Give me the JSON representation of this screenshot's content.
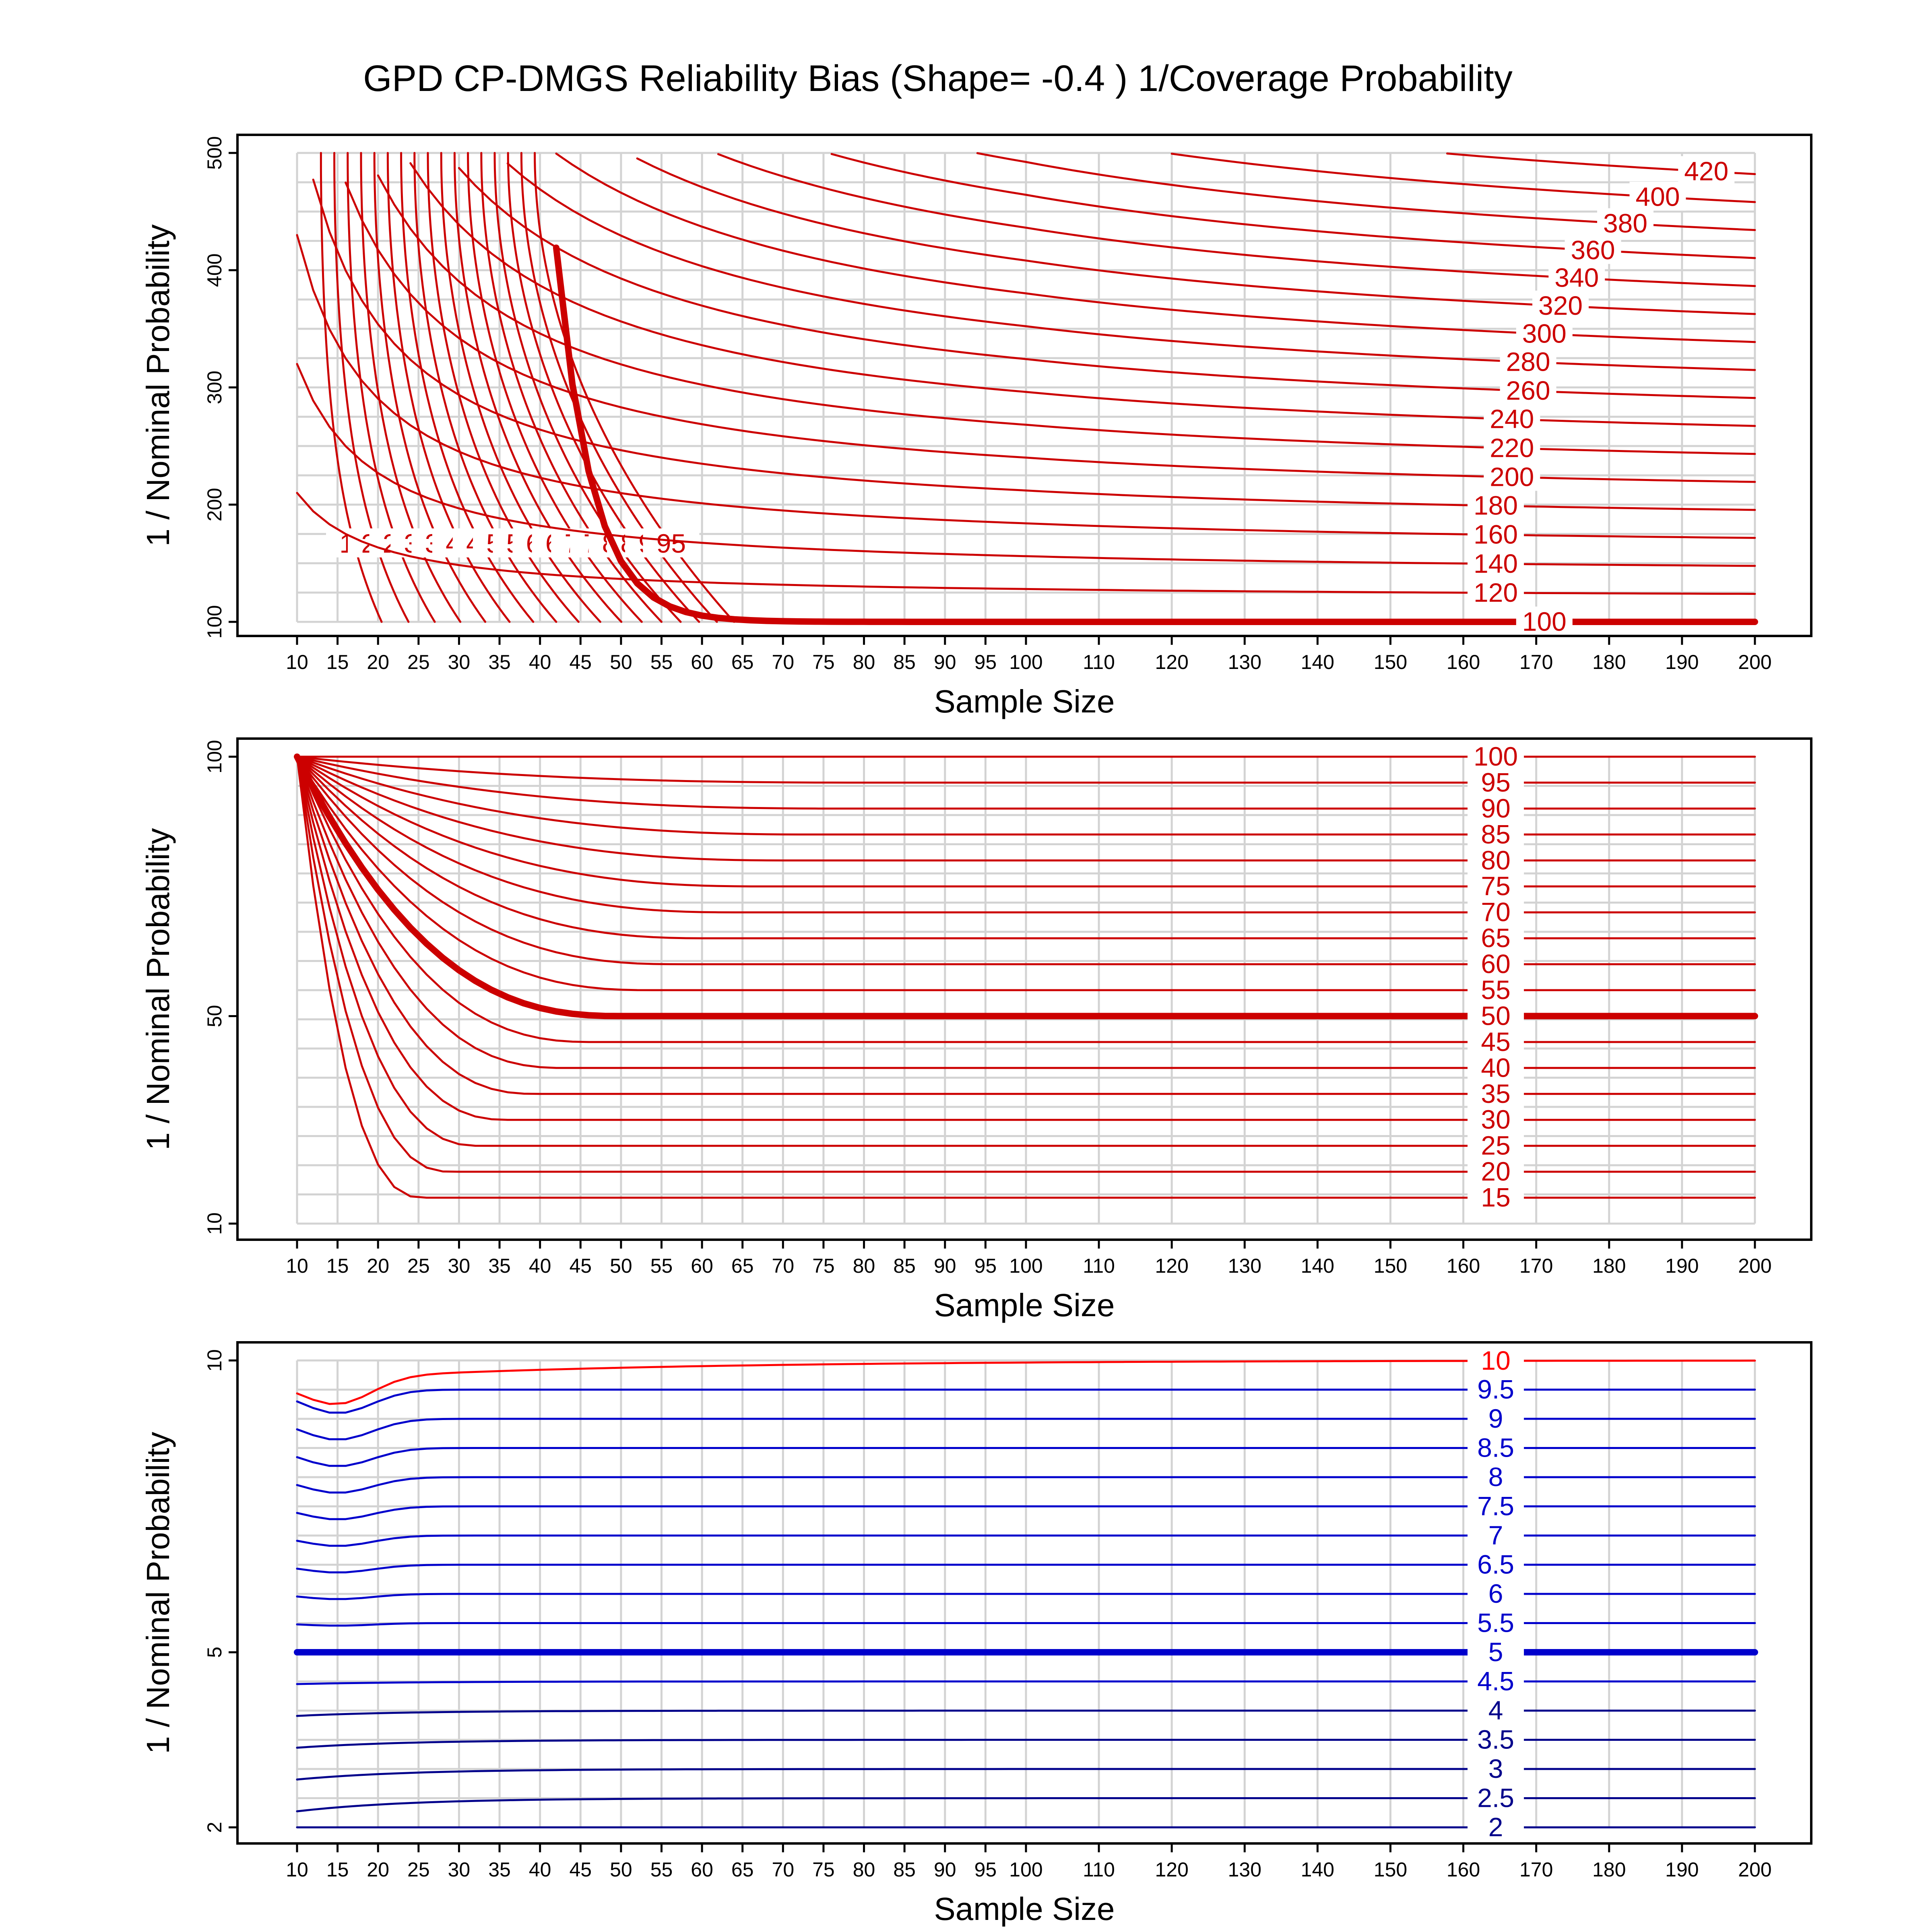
{
  "title": "GPD CP-DMGS Reliability Bias (Shape= -0.4 ) 1/Coverage Probability",
  "colors": {
    "red": "#cc0000",
    "bright_red": "#ff0000",
    "blue": "#0000cc",
    "navy": "#00008b",
    "grid": "#d3d3d3"
  },
  "chart_data": [
    {
      "type": "contour",
      "xlabel": "Sample Size",
      "ylabel": "1 / Nominal Probability",
      "x_ticks": [
        10,
        15,
        20,
        25,
        30,
        35,
        40,
        45,
        50,
        55,
        60,
        65,
        70,
        75,
        80,
        85,
        90,
        95,
        100,
        110,
        120,
        130,
        140,
        150,
        160,
        170,
        180,
        190,
        200
      ],
      "y_ticks": [
        100,
        200,
        300,
        400,
        500
      ],
      "ylim": [
        100,
        500
      ],
      "grid": true,
      "contour_levels_labeled": [
        "15",
        "20",
        "25",
        "30",
        "35",
        "40",
        "45",
        "50",
        "55",
        "60",
        "65",
        "70",
        "75",
        "80",
        "85",
        "90",
        "95",
        "100",
        "120",
        "140",
        "160",
        "180",
        "200",
        "220",
        "240",
        "260",
        "280",
        "300",
        "320",
        "340",
        "360",
        "380",
        "400",
        "420"
      ],
      "highlighted_contour": 100,
      "line_color": "red"
    },
    {
      "type": "contour",
      "xlabel": "Sample Size",
      "ylabel": "1 / Nominal Probability",
      "x_ticks": [
        10,
        15,
        20,
        25,
        30,
        35,
        40,
        45,
        50,
        55,
        60,
        65,
        70,
        75,
        80,
        85,
        90,
        95,
        100,
        110,
        120,
        130,
        140,
        150,
        160,
        170,
        180,
        190,
        200
      ],
      "y_ticks": [
        10,
        50,
        100
      ],
      "ylim": [
        10,
        100
      ],
      "grid": true,
      "contour_levels_labeled": [
        "15",
        "20",
        "25",
        "30",
        "35",
        "40",
        "45",
        "50",
        "55",
        "60",
        "65",
        "70",
        "75",
        "80",
        "85",
        "90",
        "95",
        "100"
      ],
      "highlighted_contour": 50,
      "line_color": "red"
    },
    {
      "type": "contour",
      "xlabel": "Sample Size",
      "ylabel": "1 / Nominal Probability",
      "x_ticks": [
        10,
        15,
        20,
        25,
        30,
        35,
        40,
        45,
        50,
        55,
        60,
        65,
        70,
        75,
        80,
        85,
        90,
        95,
        100,
        110,
        120,
        130,
        140,
        150,
        160,
        170,
        180,
        190,
        200
      ],
      "y_ticks": [
        2,
        5,
        10
      ],
      "ylim": [
        2,
        10
      ],
      "grid": true,
      "contour_levels_labeled": [
        "2",
        "2.5",
        "3",
        "3.5",
        "4",
        "4.5",
        "5",
        "5.5",
        "6",
        "6.5",
        "7",
        "7.5",
        "8",
        "8.5",
        "9",
        "9.5",
        "10"
      ],
      "highlighted_contour": 5,
      "line_color": "blue"
    }
  ]
}
